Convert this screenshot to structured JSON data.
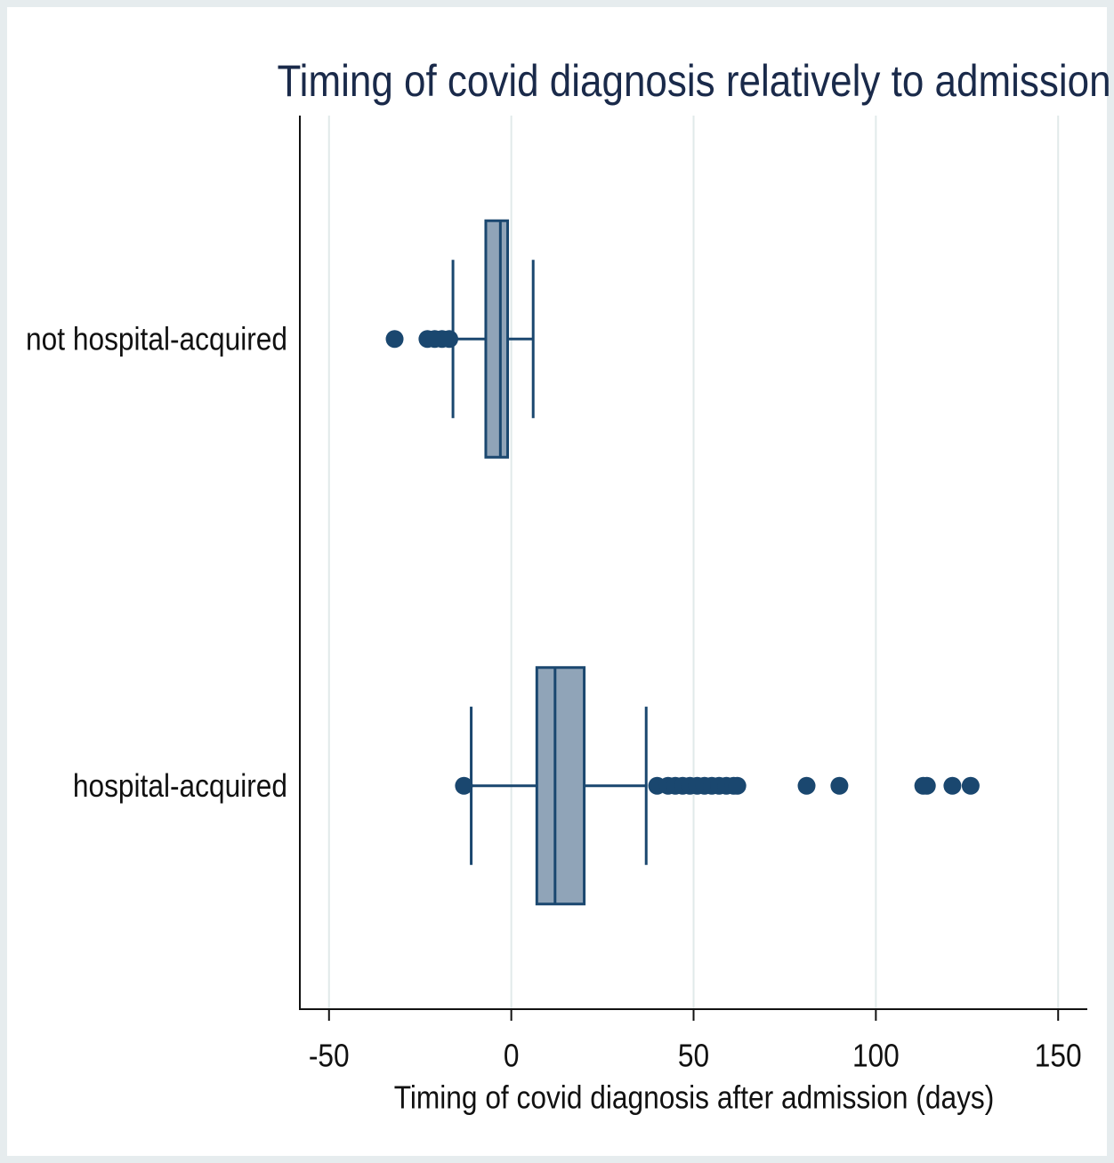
{
  "chart_data": {
    "type": "box",
    "title": "Timing of covid diagnosis relatively to admission",
    "xlabel": "Timing of covid diagnosis after admission (days)",
    "categories": [
      "not hospital-acquired",
      "hospital-acquired"
    ],
    "boxes": [
      {
        "whislo": -16,
        "q1": -7,
        "med": -3,
        "q3": -1,
        "whishi": 6,
        "fliers": [
          -32,
          -23,
          -21,
          -19,
          -17
        ]
      },
      {
        "whislo": -11,
        "q1": 7,
        "med": 12,
        "q3": 20,
        "whishi": 37,
        "fliers": [
          -13,
          40,
          43,
          45,
          47,
          49,
          51,
          53,
          55,
          57,
          59,
          61,
          62,
          81,
          90,
          113,
          114,
          121,
          126
        ]
      }
    ],
    "box_color": "#90a4b8",
    "line_color": "#1a476f",
    "xlim": [
      -58,
      158
    ],
    "xticks": [
      -50,
      0,
      50,
      100,
      150
    ],
    "grid": true
  }
}
